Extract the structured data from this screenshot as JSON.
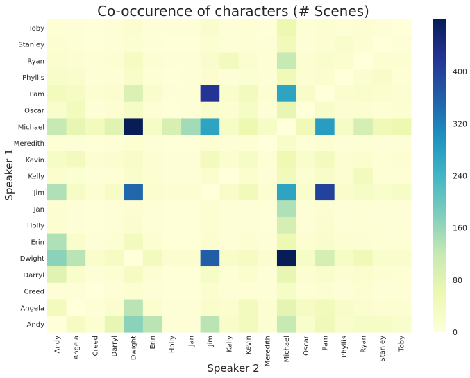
{
  "chart_data": {
    "type": "heatmap",
    "title": "Co-occurence of characters (# Scenes)",
    "xlabel": "Speaker 2",
    "ylabel": "Speaker 1",
    "x_categories": [
      "Andy",
      "Angela",
      "Creed",
      "Darryl",
      "Dwight",
      "Erin",
      "Holly",
      "Jan",
      "Jim",
      "Kelly",
      "Kevin",
      "Meredith",
      "Michael",
      "Oscar",
      "Pam",
      "Phyllis",
      "Ryan",
      "Stanley",
      "Toby"
    ],
    "y_categories_top_to_bottom": [
      "Toby",
      "Stanley",
      "Ryan",
      "Phyllis",
      "Pam",
      "Oscar",
      "Michael",
      "Meredith",
      "Kevin",
      "Kelly",
      "Jim",
      "Jan",
      "Holly",
      "Erin",
      "Dwight",
      "Darryl",
      "Creed",
      "Angela",
      "Andy"
    ],
    "values_top_to_bottom": [
      [
        8,
        5,
        3,
        6,
        15,
        5,
        5,
        5,
        20,
        6,
        8,
        4,
        60,
        8,
        12,
        8,
        10,
        6,
        0
      ],
      [
        10,
        8,
        4,
        5,
        12,
        5,
        3,
        3,
        12,
        5,
        8,
        5,
        45,
        6,
        10,
        20,
        10,
        0,
        6
      ],
      [
        15,
        10,
        8,
        10,
        35,
        10,
        5,
        5,
        20,
        40,
        15,
        8,
        120,
        10,
        20,
        15,
        0,
        10,
        10
      ],
      [
        25,
        20,
        5,
        8,
        25,
        8,
        3,
        5,
        15,
        5,
        12,
        5,
        50,
        10,
        15,
        0,
        15,
        25,
        8
      ],
      [
        40,
        35,
        10,
        15,
        90,
        20,
        5,
        5,
        420,
        20,
        40,
        10,
        270,
        25,
        0,
        15,
        20,
        15,
        12
      ],
      [
        20,
        40,
        5,
        10,
        30,
        8,
        3,
        5,
        20,
        10,
        30,
        5,
        70,
        0,
        25,
        10,
        10,
        8,
        10
      ],
      [
        120,
        70,
        40,
        80,
        480,
        30,
        95,
        150,
        270,
        30,
        60,
        30,
        0,
        50,
        280,
        30,
        100,
        50,
        60
      ],
      [
        8,
        5,
        3,
        5,
        10,
        5,
        3,
        3,
        10,
        5,
        8,
        0,
        25,
        5,
        10,
        5,
        8,
        5,
        5
      ],
      [
        30,
        40,
        10,
        15,
        25,
        10,
        5,
        5,
        40,
        15,
        30,
        8,
        55,
        20,
        40,
        10,
        15,
        8,
        10
      ],
      [
        15,
        12,
        5,
        8,
        20,
        10,
        5,
        5,
        15,
        0,
        15,
        5,
        45,
        10,
        25,
        10,
        40,
        8,
        8
      ],
      [
        140,
        30,
        10,
        30,
        350,
        15,
        10,
        10,
        0,
        25,
        45,
        10,
        270,
        20,
        400,
        20,
        30,
        20,
        30
      ],
      [
        10,
        5,
        3,
        5,
        10,
        5,
        3,
        3,
        10,
        5,
        5,
        3,
        140,
        5,
        10,
        5,
        8,
        5,
        5
      ],
      [
        10,
        5,
        3,
        5,
        15,
        5,
        3,
        3,
        10,
        5,
        5,
        3,
        100,
        5,
        15,
        5,
        8,
        5,
        5
      ],
      [
        140,
        20,
        5,
        10,
        40,
        10,
        3,
        3,
        15,
        5,
        10,
        5,
        60,
        10,
        20,
        10,
        10,
        8,
        8
      ],
      [
        170,
        130,
        20,
        35,
        0,
        40,
        15,
        15,
        360,
        25,
        35,
        15,
        480,
        30,
        100,
        30,
        50,
        20,
        20
      ],
      [
        80,
        20,
        5,
        10,
        35,
        10,
        3,
        3,
        30,
        8,
        15,
        5,
        70,
        10,
        20,
        10,
        15,
        10,
        8
      ],
      [
        5,
        5,
        0,
        5,
        10,
        5,
        3,
        3,
        15,
        5,
        8,
        5,
        30,
        8,
        10,
        5,
        10,
        5,
        5
      ],
      [
        40,
        0,
        5,
        15,
        130,
        15,
        5,
        5,
        20,
        15,
        40,
        10,
        75,
        35,
        45,
        25,
        15,
        10,
        10
      ],
      [
        0,
        35,
        10,
        70,
        170,
        130,
        5,
        5,
        130,
        25,
        40,
        10,
        120,
        20,
        50,
        20,
        30,
        30,
        20
      ]
    ],
    "colorbar": {
      "min": 0,
      "max": 480,
      "ticks": [
        0,
        80,
        160,
        240,
        320,
        400
      ],
      "colorscale": "YlGnBu",
      "stops": [
        "#ffffd9",
        "#edf8b1",
        "#c7e9b4",
        "#7fcdbb",
        "#41b6c4",
        "#1d91c0",
        "#225ea8",
        "#253494",
        "#081d58"
      ]
    }
  }
}
